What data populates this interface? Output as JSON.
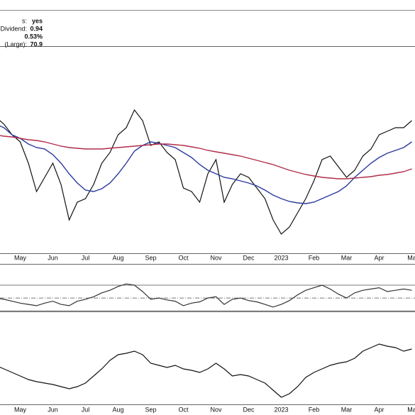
{
  "header": {
    "rows": [
      {
        "label": "s:",
        "value": "yes"
      },
      {
        "label": "al Dividend:",
        "value": "0.94"
      },
      {
        "value": "0.53%"
      },
      {
        "label": "(Large):",
        "value": "70.9"
      }
    ]
  },
  "chart_data": [
    {
      "type": "line",
      "categories": [
        null,
        null,
        null,
        "May",
        null,
        null,
        null,
        "Jun",
        null,
        null,
        null,
        "Jul",
        null,
        null,
        null,
        "Aug",
        null,
        null,
        null,
        "Sep",
        null,
        null,
        null,
        "Oct",
        null,
        null,
        null,
        "Nov",
        null,
        null,
        null,
        "Dec",
        null,
        null,
        null,
        "2023",
        null,
        null,
        null,
        "Feb",
        null,
        null,
        null,
        "Mar",
        null,
        null,
        null,
        "Apr",
        null,
        null,
        null,
        "Ma"
      ],
      "ylim": [
        0,
        292
      ],
      "series": [
        {
          "color": "#111111",
          "values": [
            192,
            182,
            167,
            157,
            127,
            87,
            107,
            127,
            97,
            47,
            72,
            77,
            97,
            127,
            142,
            167,
            177,
            202,
            187,
            152,
            157,
            142,
            132,
            92,
            87,
            72,
            112,
            132,
            72,
            97,
            112,
            107,
            92,
            77,
            47,
            27,
            37,
            57,
            77,
            102,
            132,
            137,
            122,
            107,
            117,
            137,
            147,
            167,
            172,
            177,
            177,
            187
          ]
        },
        {
          "color": "#2b3a9e",
          "values": [
            182,
            177,
            167,
            162,
            154,
            149,
            147,
            139,
            127,
            112,
            99,
            89,
            87,
            91,
            99,
            112,
            127,
            144,
            152,
            157,
            155,
            152,
            149,
            142,
            135,
            125,
            117,
            112,
            107,
            105,
            102,
            99,
            95,
            89,
            82,
            77,
            73,
            71,
            70,
            72,
            77,
            82,
            87,
            95,
            107,
            117,
            127,
            135,
            141,
            145,
            149,
            157
          ]
        },
        {
          "color": "#b02c48",
          "values": [
            167,
            165,
            164,
            162,
            160,
            159,
            157,
            154,
            151,
            149,
            148,
            147,
            147,
            147,
            148,
            149,
            150,
            151,
            152,
            153,
            154,
            154,
            153,
            152,
            150,
            148,
            145,
            143,
            141,
            139,
            137,
            134,
            131,
            128,
            125,
            121,
            117,
            114,
            111,
            109,
            107,
            106,
            105,
            105,
            106,
            107,
            108,
            110,
            111,
            113,
            115,
            119
          ]
        }
      ]
    },
    {
      "type": "line",
      "ylim": [
        28,
        102
      ],
      "hlines": [
        70,
        50,
        30
      ],
      "series": [
        {
          "color": "#333333",
          "values": [
            50,
            48,
            45,
            42,
            40,
            38,
            42,
            45,
            40,
            38,
            45,
            48,
            52,
            58,
            62,
            68,
            72,
            70,
            60,
            48,
            50,
            47,
            45,
            38,
            42,
            44,
            50,
            52,
            40,
            48,
            50,
            46,
            44,
            40,
            36,
            40,
            46,
            55,
            62,
            66,
            70,
            64,
            56,
            50,
            58,
            62,
            64,
            66,
            60,
            62,
            64,
            62
          ]
        }
      ]
    },
    {
      "type": "line",
      "categories": [
        null,
        null,
        null,
        "May",
        null,
        null,
        null,
        "Jun",
        null,
        null,
        null,
        "Jul",
        null,
        null,
        null,
        "Aug",
        null,
        null,
        null,
        "Sep",
        null,
        null,
        null,
        "Oct",
        null,
        null,
        null,
        "Nov",
        null,
        null,
        null,
        "Dec",
        null,
        null,
        null,
        "2023",
        null,
        null,
        null,
        "Feb",
        null,
        null,
        null,
        "Mar",
        null,
        null,
        null,
        "Apr",
        null,
        null,
        null,
        "Ma"
      ],
      "ylim": [
        0,
        130
      ],
      "series": [
        {
          "color": "#111111",
          "values": [
            55,
            50,
            45,
            40,
            35,
            32,
            30,
            28,
            25,
            22,
            25,
            30,
            40,
            50,
            62,
            70,
            72,
            75,
            70,
            58,
            55,
            52,
            55,
            50,
            48,
            45,
            50,
            58,
            50,
            40,
            42,
            40,
            35,
            30,
            20,
            10,
            15,
            25,
            38,
            45,
            50,
            55,
            58,
            60,
            65,
            75,
            80,
            85,
            82,
            80,
            75,
            78
          ]
        }
      ]
    }
  ]
}
